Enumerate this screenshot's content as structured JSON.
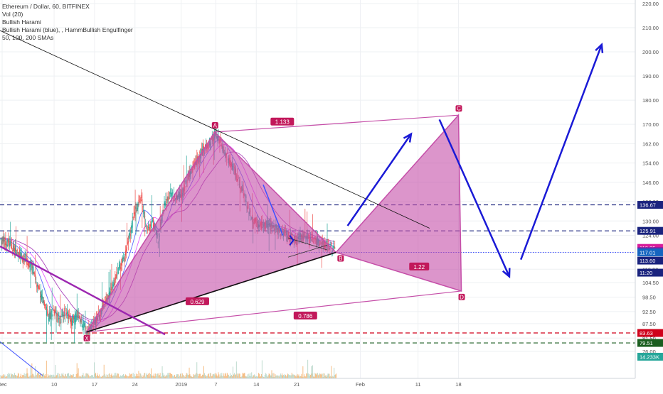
{
  "legend": {
    "title": "Ethereum / Dollar, 60, BITFINEX",
    "vol": "Vol (20)",
    "ind1": "Bullish Harami",
    "ind2": "Bullish Harami (blue), , HammBullish Engulfinger",
    "ind3": "50, 100, 200 SMAs"
  },
  "colors": {
    "background": "#ffffff",
    "pattern_fill": "#c54ea8",
    "pattern_label": "#c2185b",
    "arrow": "#1a1ad6",
    "trendline": "#111111",
    "support_red": "#d0021b",
    "support_green": "#1b5e20",
    "level_navy": "#1a237e",
    "sma_blue": "#3f51ff",
    "sma_purple": "#9c27b0"
  },
  "chart_data": {
    "type": "candlestick",
    "title": "Ethereum / Dollar, 60, BITFINEX",
    "y_ticks": [
      76.0,
      81.5,
      87.5,
      92.5,
      98.5,
      104.5,
      110.0,
      117.0,
      124.0,
      130.0,
      138.0,
      146.0,
      154.0,
      162.0,
      170.0,
      180.0,
      190.0,
      200.0,
      210.0,
      220.0
    ],
    "x_ticks": [
      {
        "label": "Dec",
        "day": 0
      },
      {
        "label": "10",
        "day": 9
      },
      {
        "label": "17",
        "day": 16
      },
      {
        "label": "24",
        "day": 23
      },
      {
        "label": "2019",
        "day": 31
      },
      {
        "label": "7",
        "day": 37
      },
      {
        "label": "14",
        "day": 44
      },
      {
        "label": "21",
        "day": 51
      },
      {
        "label": "Feb",
        "day": 62
      },
      {
        "label": "11",
        "day": 72
      },
      {
        "label": "18",
        "day": 79
      }
    ],
    "price_boxes": [
      {
        "value": "136.67",
        "price": 136.67,
        "color": "#1a237e"
      },
      {
        "value": "125.91",
        "price": 125.91,
        "color": "#1a237e"
      },
      {
        "value": "118.85",
        "price": 118.85,
        "color": "#d81b9a"
      },
      {
        "value": "117.51",
        "price": 117.51,
        "color": "#7b1fa2"
      },
      {
        "value": "117.01",
        "price": 117.01,
        "color": "#1565c0"
      },
      {
        "value": "113.60",
        "price": 113.6,
        "color": "#1a237e"
      },
      {
        "value": "11:20",
        "price": 108.6,
        "color": "#1a237e"
      },
      {
        "value": "83.63",
        "price": 83.63,
        "color": "#d0021b"
      },
      {
        "value": "79.51",
        "price": 79.51,
        "color": "#1b5e20"
      },
      {
        "value": "14.233K",
        "price": 73.8,
        "color": "#26a69a"
      }
    ],
    "levels": [
      {
        "price": 136.67,
        "style": "dashed",
        "color": "#1a237e"
      },
      {
        "price": 125.91,
        "style": "dashed",
        "color": "#1a237e"
      },
      {
        "price": 117.01,
        "style": "dotted",
        "color": "#3f51ff"
      },
      {
        "price": 83.63,
        "style": "dashed",
        "color": "#d0021b"
      },
      {
        "price": 79.51,
        "style": "dashed",
        "color": "#1b5e20"
      }
    ],
    "harmonic": {
      "points": [
        {
          "label": "X",
          "day": 14.6,
          "price": 84.0
        },
        {
          "label": "A",
          "day": 36.8,
          "price": 166.8
        },
        {
          "label": "B",
          "day": 57.8,
          "price": 117.0
        },
        {
          "label": "C",
          "day": 79.0,
          "price": 173.8
        },
        {
          "label": "D",
          "day": 79.5,
          "price": 101.0
        }
      ],
      "ratios": [
        {
          "label": "1.133",
          "day": 48.5,
          "price": 171.0
        },
        {
          "label": "0.629",
          "day": 33.8,
          "price": 96.6
        },
        {
          "label": "0.786",
          "day": 52.5,
          "price": 90.7
        },
        {
          "label": "1.22",
          "day": 72.2,
          "price": 111.0
        }
      ]
    },
    "series": [
      {
        "kind": "close",
        "x_day": [
          -1,
          1,
          3,
          5,
          6,
          7,
          8,
          9,
          10,
          11,
          12,
          13,
          14,
          14.6,
          16,
          18,
          19,
          20,
          21,
          22,
          23,
          24,
          25,
          26,
          27,
          28,
          29,
          30,
          31,
          32,
          33,
          34,
          35,
          36,
          36.8,
          38,
          39,
          40,
          41,
          42,
          43,
          44,
          45,
          46,
          47,
          48,
          49,
          50,
          51,
          52,
          53,
          54,
          55,
          56,
          57,
          57.8
        ],
        "y": [
          123,
          121,
          116,
          112,
          104,
          97,
          90,
          92,
          89,
          93,
          88,
          91,
          87,
          84,
          88,
          97,
          102,
          110,
          114,
          124,
          134,
          140,
          126,
          130,
          122,
          136,
          142,
          139,
          141,
          147,
          152,
          156,
          160,
          163,
          166,
          161,
          156,
          152,
          146,
          140,
          132,
          129,
          128,
          129,
          127,
          126,
          125,
          123,
          122,
          124,
          123,
          122,
          121,
          120,
          119,
          117
        ]
      }
    ],
    "projection": [
      {
        "day": 57.8,
        "price": 117.0
      },
      {
        "day": 79.0,
        "price": 173.8
      },
      {
        "day": 79.5,
        "price": 101.0
      },
      {
        "day": 95.8,
        "price": 210.0
      }
    ]
  }
}
